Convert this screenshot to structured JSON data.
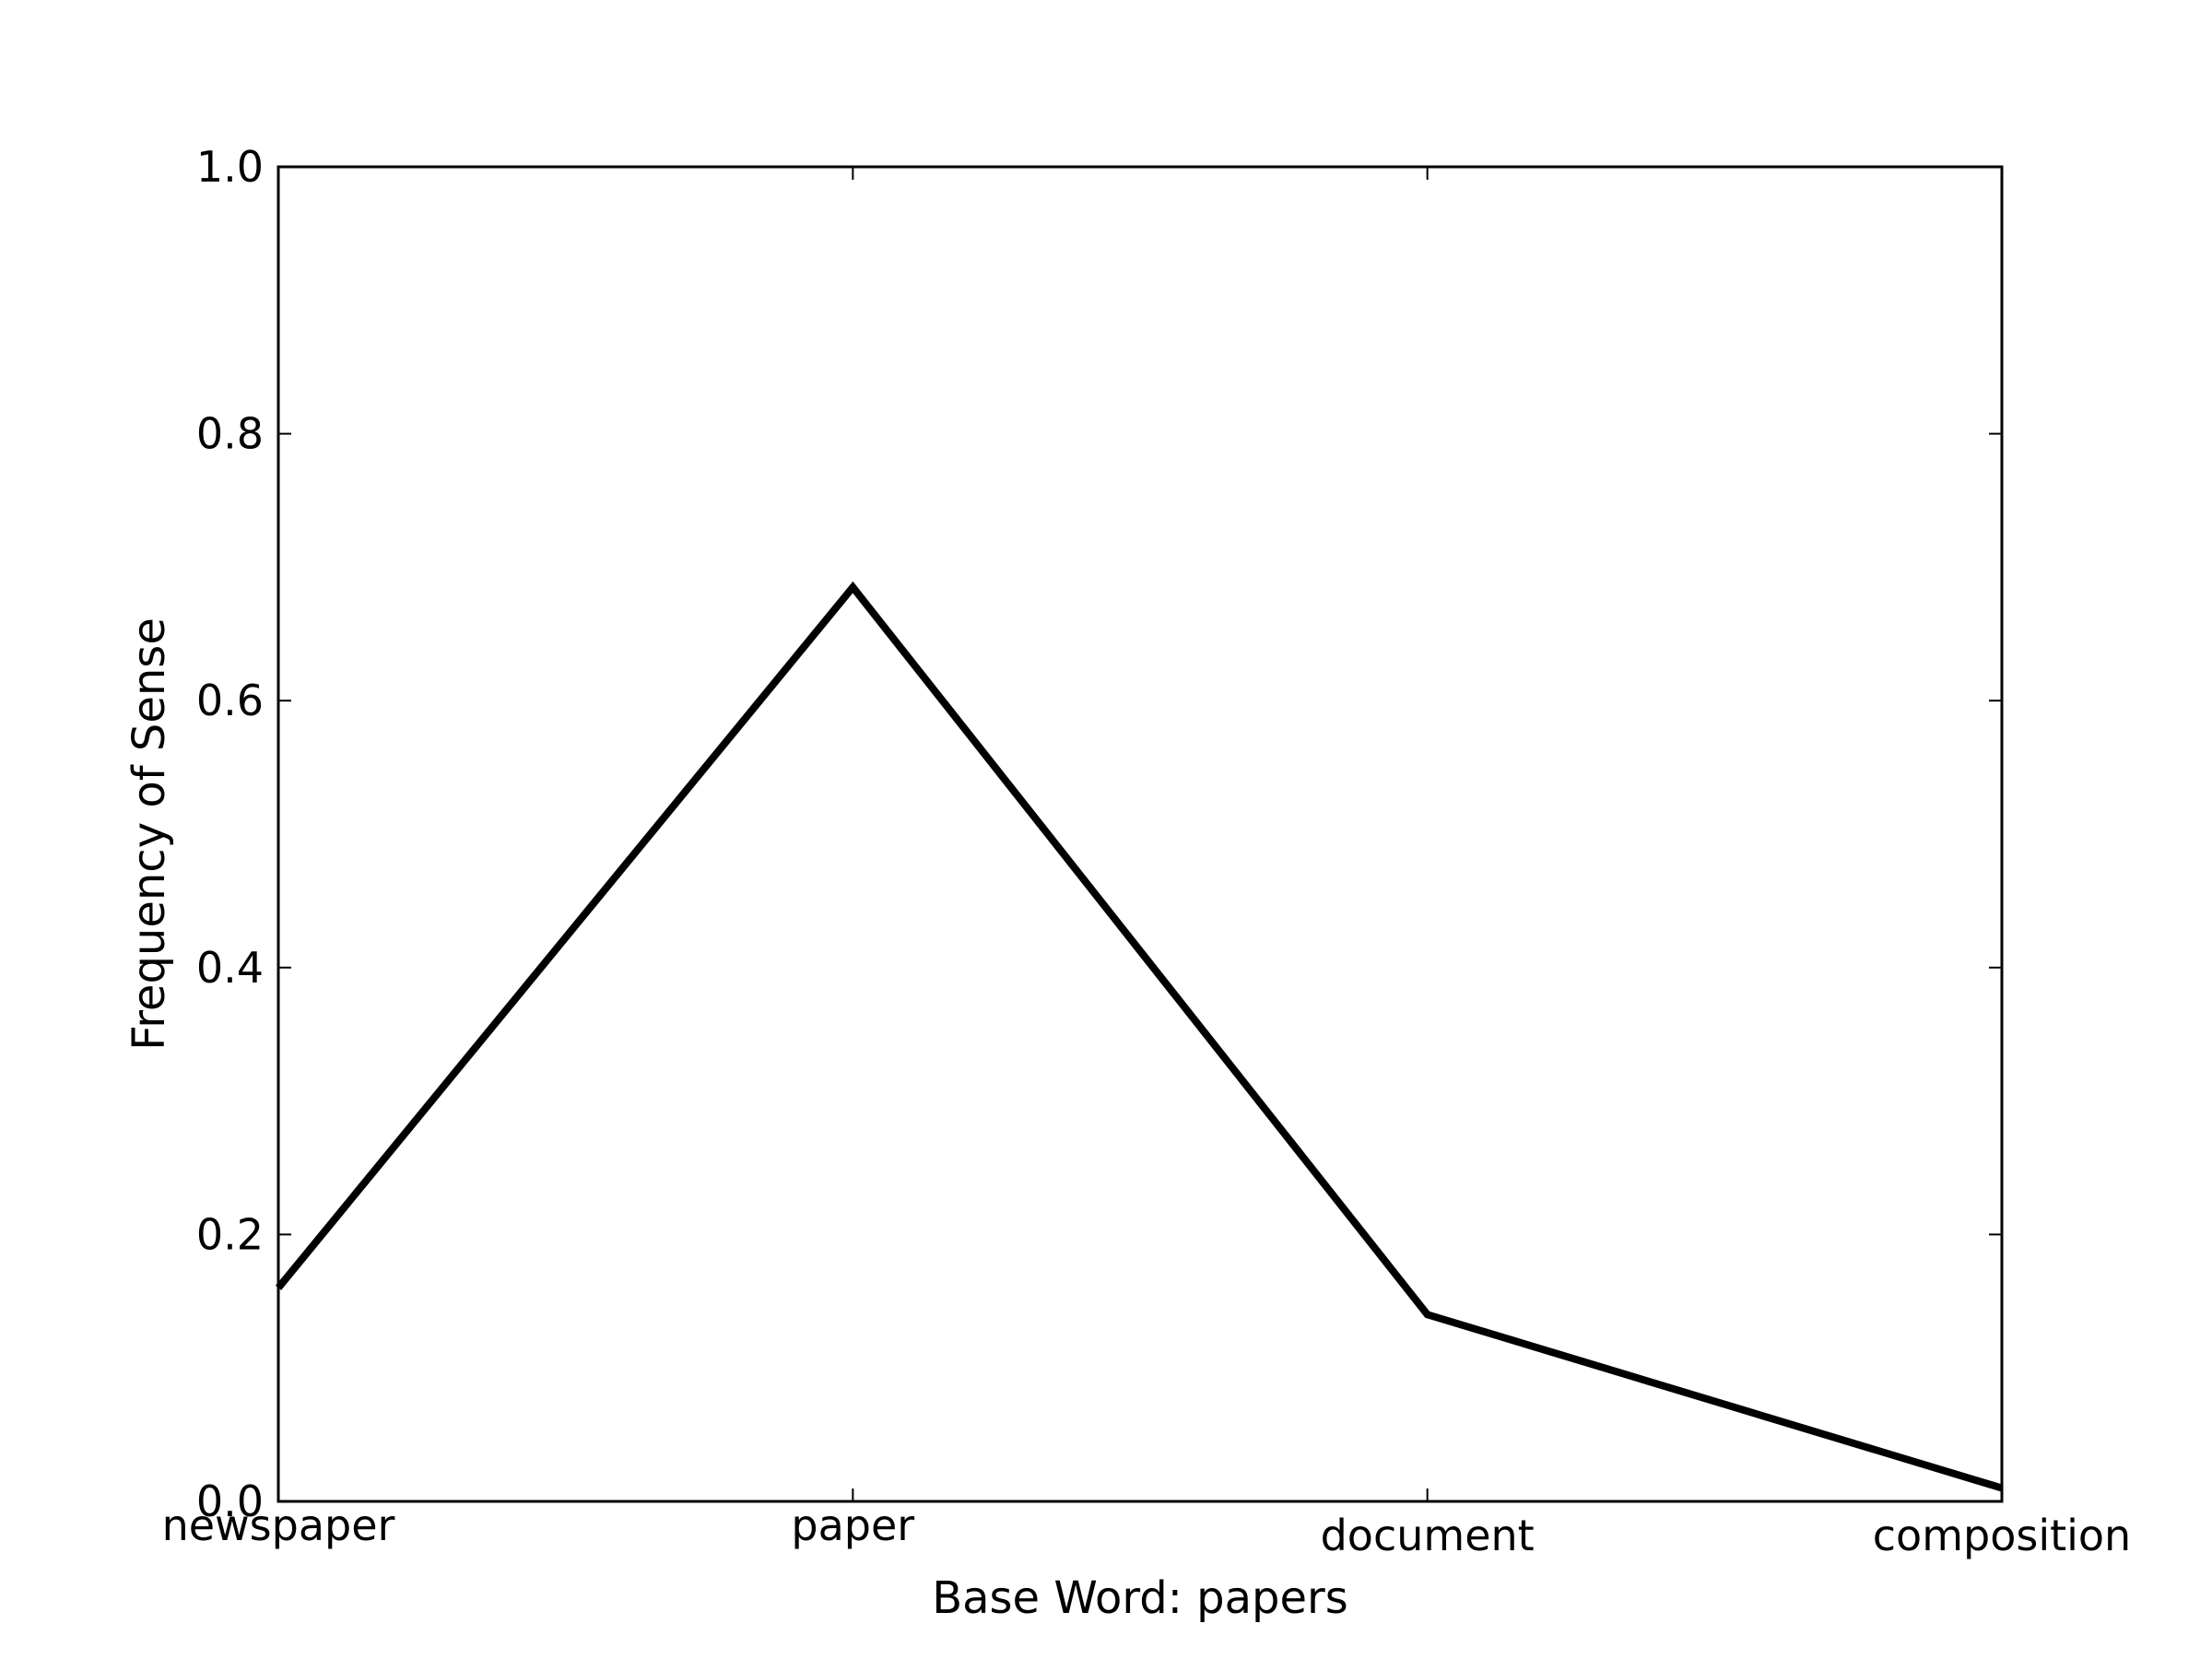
{
  "chart_data": {
    "type": "line",
    "categories": [
      "newspaper",
      "paper",
      "document",
      "composition"
    ],
    "series": [
      {
        "values": [
          0.16,
          0.685,
          0.14,
          0.01
        ]
      }
    ],
    "xlabel": "Base Word: papers",
    "ylabel": "Frequency of Sense",
    "ylim": [
      0.0,
      1.0
    ],
    "yticks": [
      "0.0",
      "0.2",
      "0.4",
      "0.6",
      "0.8",
      "1.0"
    ],
    "grid": false,
    "line_color": "#000000"
  }
}
